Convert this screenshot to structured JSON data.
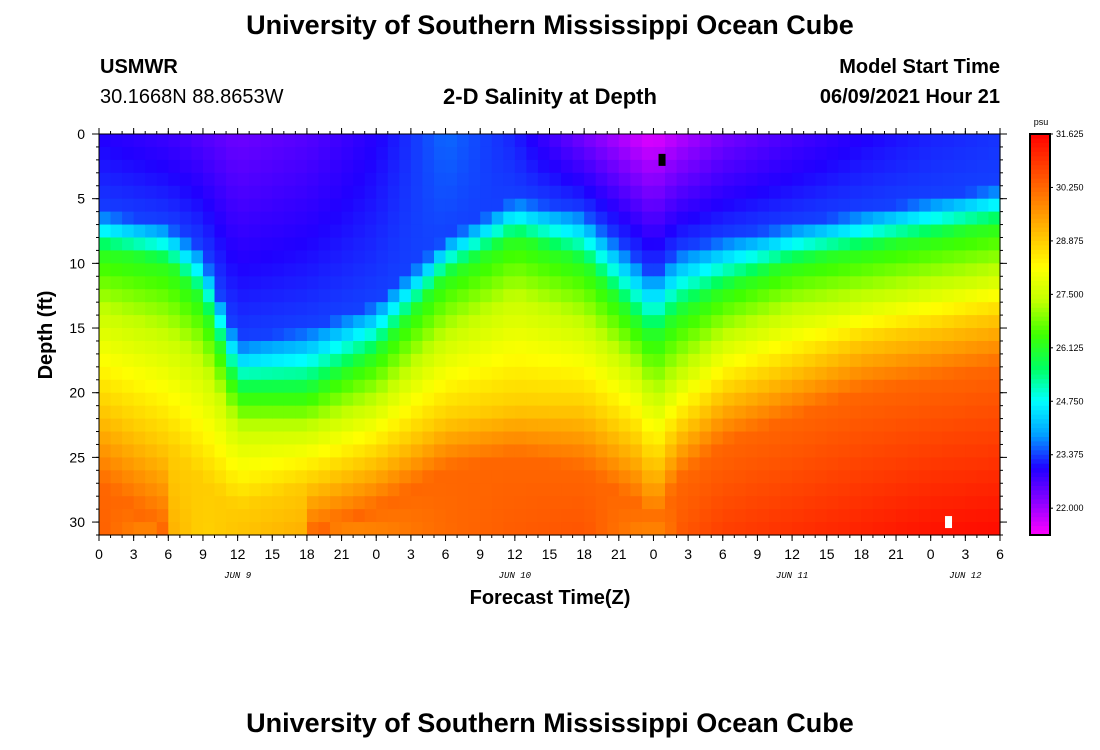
{
  "header": {
    "title": "University of Southern Mississippi Ocean Cube",
    "station": "USMWR",
    "coords": "30.1668N  88.8653W",
    "subtitle": "2-D Salinity at Depth",
    "start_label": "Model Start Time",
    "start_value": "06/09/2021 Hour 21"
  },
  "footer": {
    "title": "University of Southern Mississippi Ocean Cube"
  },
  "chart_data": {
    "type": "heatmap",
    "title": "2-D Salinity at Depth",
    "xlabel": "Forecast Time(Z)",
    "ylabel": "Depth (ft)",
    "x_start": "06/09/2021 00Z",
    "x_end": "06/12/2021 06Z",
    "xlim_hours": [
      0,
      78
    ],
    "ylim": [
      31,
      0
    ],
    "y_ticks": [
      0,
      5,
      10,
      15,
      20,
      25,
      30
    ],
    "x_tick_labels": [
      "0",
      "3",
      "6",
      "9",
      "12",
      "15",
      "18",
      "21",
      "0",
      "3",
      "6",
      "9",
      "12",
      "15",
      "18",
      "21",
      "0",
      "3",
      "6",
      "9",
      "12",
      "15",
      "18",
      "21",
      "0",
      "3",
      "6"
    ],
    "date_labels": [
      {
        "label": "JUN 9",
        "hour": 12
      },
      {
        "label": "JUN 10",
        "hour": 36
      },
      {
        "label": "JUN 11",
        "hour": 60
      },
      {
        "label": "JUN 12",
        "hour": 75
      }
    ],
    "colorbar": {
      "unit": "psu",
      "min": 21.31,
      "max": 31.625,
      "labels": [
        "31.625",
        "30.250",
        "28.875",
        "27.500",
        "26.125",
        "24.750",
        "23.375",
        "22.000"
      ],
      "colors": [
        "#ff00ff",
        "#8a00ff",
        "#2000ff",
        "#00a0ff",
        "#00ffff",
        "#00ff60",
        "#40ff00",
        "#c0ff00",
        "#ffff00",
        "#ffc000",
        "#ff8000",
        "#ff4000",
        "#ff0000"
      ]
    },
    "isohaline_depths": {
      "hours": [
        0,
        6,
        9,
        12,
        18,
        24,
        30,
        36,
        42,
        47,
        48,
        50,
        54,
        60,
        66,
        72,
        78
      ],
      "salinity": [
        23.375,
        26.125,
        27.5,
        28.875,
        30.25
      ],
      "depth_by_salinity": [
        [
          6,
          7,
          9,
          16,
          15,
          13,
          8,
          5,
          6,
          10,
          11,
          9,
          8,
          7,
          6,
          5,
          4
        ],
        [
          9,
          10,
          13,
          20,
          20,
          17,
          11,
          8,
          10,
          15,
          16,
          14,
          12,
          10,
          9,
          8,
          7
        ],
        [
          14,
          16,
          18,
          23,
          23,
          21,
          16,
          13,
          15,
          19,
          21,
          19,
          16,
          14,
          13,
          12,
          11
        ],
        [
          21,
          24,
          27,
          29,
          27,
          25,
          22,
          21,
          21,
          24,
          26,
          23,
          20,
          18,
          16,
          15,
          14
        ],
        [
          27,
          31,
          33,
          33,
          31,
          29,
          26,
          25,
          26,
          29,
          31,
          27,
          24,
          22,
          20,
          19,
          18
        ]
      ],
      "surface_salinity": [
        23.0,
        22.8,
        22.6,
        22.4,
        22.6,
        23.0,
        23.6,
        23.2,
        22.3,
        21.6,
        21.5,
        21.8,
        22.3,
        22.7,
        23.0,
        23.2,
        23.3
      ],
      "bottom_salinity": [
        30.4,
        29.3,
        28.8,
        29.0,
        29.3,
        29.8,
        30.2,
        30.4,
        30.5,
        29.8,
        29.3,
        30.4,
        30.8,
        31.0,
        31.2,
        31.4,
        31.5
      ]
    },
    "markers": [
      {
        "hour": 48.7,
        "depth": 2,
        "color": "#000000"
      },
      {
        "hour": 73.5,
        "depth": 30,
        "color": "#ffffff"
      }
    ]
  }
}
